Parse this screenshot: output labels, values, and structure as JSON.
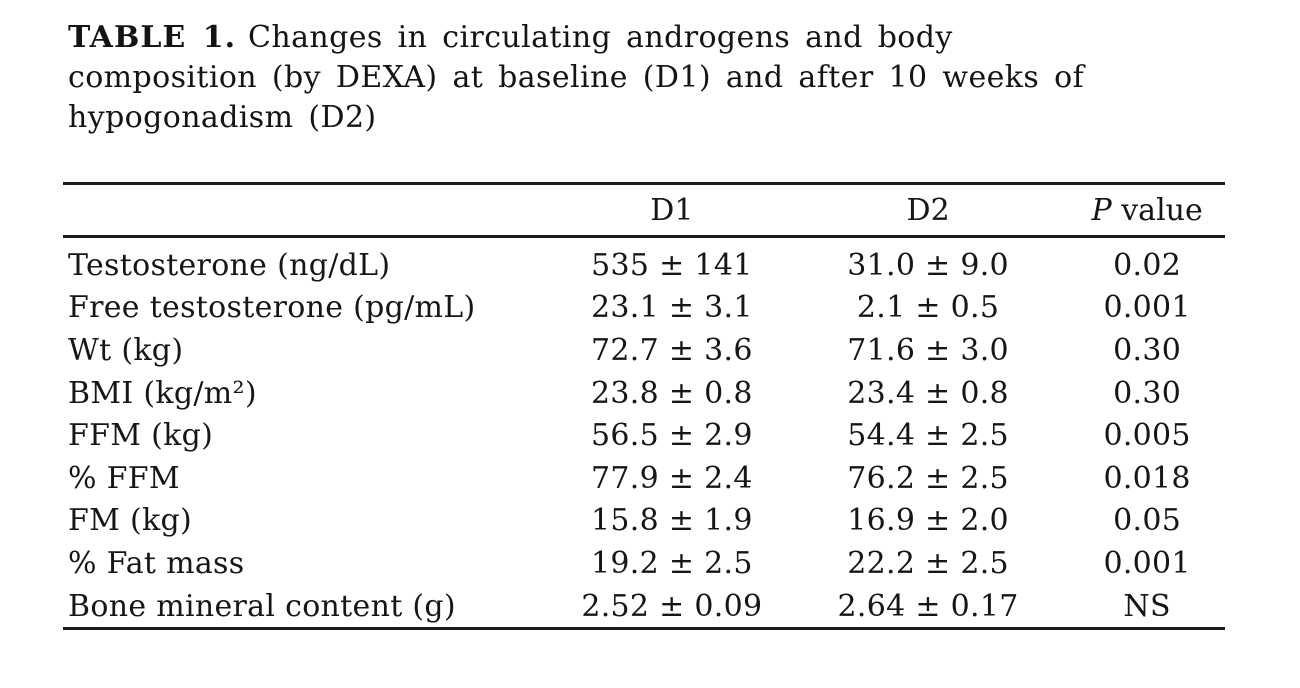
{
  "caption": {
    "label": "TABLE 1.",
    "line1_rest": "Changes in circulating androgens and body",
    "line2": "composition (by DEXA) at baseline (D1) and after 10 weeks of",
    "line3": "hypogonadism (D2)"
  },
  "table": {
    "columns": {
      "label": "",
      "d1": "D1",
      "d2": "D2",
      "p_italic": "P",
      "p_rest": "value"
    },
    "rows": [
      {
        "label": "Testosterone (ng/dL)",
        "d1": "535 ± 141",
        "d2": "31.0 ± 9.0",
        "p": "0.02"
      },
      {
        "label": "Free testosterone (pg/mL)",
        "d1": "23.1 ± 3.1",
        "d2": "2.1 ± 0.5",
        "p": "0.001"
      },
      {
        "label": "Wt (kg)",
        "d1": "72.7 ± 3.6",
        "d2": "71.6 ± 3.0",
        "p": "0.30"
      },
      {
        "label": "BMI (kg/m²)",
        "d1": "23.8 ± 0.8",
        "d2": "23.4 ± 0.8",
        "p": "0.30"
      },
      {
        "label": "FFM (kg)",
        "d1": "56.5 ± 2.9",
        "d2": "54.4 ± 2.5",
        "p": "0.005"
      },
      {
        "label": "% FFM",
        "d1": "77.9 ± 2.4",
        "d2": "76.2 ± 2.5",
        "p": "0.018"
      },
      {
        "label": "FM (kg)",
        "d1": "15.8 ± 1.9",
        "d2": "16.9 ± 2.0",
        "p": "0.05"
      },
      {
        "label": "% Fat mass",
        "d1": "19.2 ± 2.5",
        "d2": "22.2 ± 2.5",
        "p": "0.001"
      },
      {
        "label": "Bone mineral content (g)",
        "d1": "2.52 ± 0.09",
        "d2": "2.64 ± 0.17",
        "p": "NS"
      }
    ]
  },
  "colors": {
    "background": "#ffffff",
    "text": "#161616",
    "rule": "#1c1c1c"
  }
}
